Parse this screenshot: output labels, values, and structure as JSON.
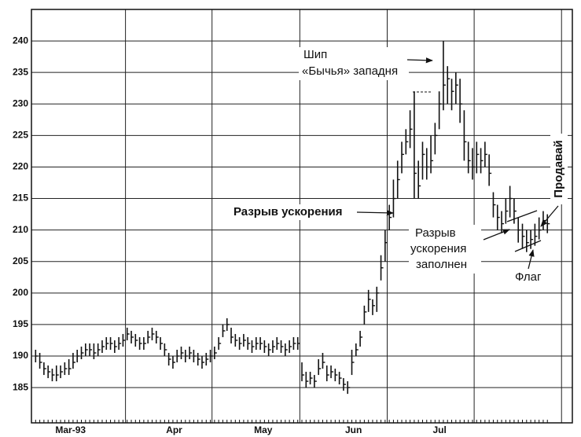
{
  "chart_data": {
    "type": "ohlc",
    "xlim": [
      0,
      130
    ],
    "xticks": [
      {
        "value": 9.4,
        "label": "Mar-93"
      },
      {
        "value": 34.3,
        "label": "Apr"
      },
      {
        "value": 55.7,
        "label": "May"
      },
      {
        "value": 77.4,
        "label": "Jun"
      },
      {
        "value": 98.1,
        "label": "Jul"
      }
    ],
    "xgrid": [
      22.6,
      43.4,
      64.5,
      85.5,
      106.4,
      127.4
    ],
    "ylim": [
      179.4,
      245
    ],
    "yticks": [
      185,
      190,
      195,
      200,
      205,
      210,
      215,
      220,
      225,
      230,
      235,
      240
    ],
    "grid": true,
    "color": "#111111",
    "annotations": {
      "spike": "Шип",
      "bull_trap": "«Бычья» западня",
      "gap": "Разрыв ускорения",
      "gap_filled": [
        "Разрыв",
        "ускорения",
        "заполнен"
      ],
      "flag": "Флаг",
      "sell": "Продавай"
    },
    "high": [
      191,
      190.5,
      189,
      188.5,
      188,
      188.5,
      188.5,
      189,
      189.5,
      190.5,
      191,
      191.5,
      192,
      192,
      192,
      192,
      192.5,
      193,
      193,
      192.5,
      193,
      193.5,
      194.5,
      194,
      193.5,
      193,
      193,
      194,
      194.5,
      194,
      193,
      192,
      190.5,
      190,
      191,
      191.5,
      191,
      191.5,
      191,
      190.5,
      190,
      190.5,
      191,
      191.5,
      193,
      195,
      196,
      194.5,
      193.5,
      193,
      193.5,
      193,
      192.5,
      193,
      193,
      192.5,
      192,
      192.5,
      193,
      192.5,
      192,
      192.5,
      193,
      193,
      189,
      187.5,
      187.5,
      187,
      189.5,
      190.5,
      188.5,
      188.5,
      188,
      187.5,
      186.5,
      186,
      191,
      192,
      194,
      198,
      200.5,
      199,
      201,
      206,
      210,
      214,
      218,
      221,
      224,
      226,
      229,
      232,
      221,
      224,
      223,
      225,
      227,
      232,
      240,
      236,
      234,
      235,
      234,
      229,
      224,
      223,
      224,
      223,
      224,
      222,
      216,
      214,
      213,
      215,
      217,
      215,
      212,
      211,
      210,
      210,
      211,
      212,
      213,
      212.5
    ],
    "low": [
      189,
      188,
      187,
      186.5,
      186,
      186,
      186.5,
      187,
      187,
      188,
      189,
      189.5,
      190,
      190,
      189.5,
      190,
      190.5,
      191,
      191,
      190.5,
      191,
      191.5,
      192.5,
      192,
      191.5,
      191,
      191,
      192,
      192.5,
      192,
      191,
      190,
      188.5,
      188,
      189,
      189.5,
      189,
      189.5,
      189,
      188.5,
      188,
      188.5,
      189,
      189.5,
      191,
      193,
      194,
      192,
      191.5,
      191,
      191.5,
      191,
      190.5,
      191,
      191,
      190.5,
      190,
      190.5,
      191,
      190.5,
      190,
      190.5,
      191,
      191,
      186,
      185,
      185.5,
      185,
      187,
      188,
      186,
      186.5,
      186,
      185.5,
      184.5,
      184,
      187,
      190,
      191.5,
      195,
      197,
      196.5,
      197,
      202,
      205,
      210,
      212,
      215,
      219,
      222,
      223,
      215,
      215,
      218,
      218,
      219,
      222,
      226,
      229,
      230,
      229,
      230,
      227,
      221,
      219,
      218,
      219,
      219,
      220,
      217,
      212,
      210,
      209.5,
      211,
      212,
      211,
      208,
      207,
      206.5,
      207,
      207.5,
      208.5,
      210,
      209.5
    ],
    "close": [
      190,
      189,
      188,
      187.5,
      187,
      187,
      187.5,
      188,
      188,
      189,
      190,
      190.5,
      191,
      191,
      190.5,
      191,
      191.5,
      192,
      192,
      191.5,
      192,
      192.5,
      193.5,
      193,
      192.5,
      192,
      192,
      193,
      193.5,
      193,
      192,
      191,
      189.5,
      189,
      190,
      190.5,
      190,
      190.5,
      190,
      189.5,
      189,
      189.5,
      190,
      190.5,
      192,
      194,
      195,
      193,
      192.5,
      192,
      192.5,
      192,
      191.5,
      192,
      192,
      191.5,
      191,
      191.5,
      192,
      191.5,
      191,
      191.5,
      192,
      192,
      187,
      186,
      186.5,
      186,
      188,
      189,
      187,
      187.5,
      187,
      186.5,
      185.5,
      185,
      189,
      191,
      193,
      197,
      199,
      198,
      200,
      204,
      208,
      212,
      215,
      218,
      222,
      224,
      226,
      219,
      217,
      222,
      220,
      221,
      225,
      230,
      233,
      234,
      232,
      233,
      230,
      224,
      221,
      220,
      222,
      221,
      222,
      219,
      214,
      212,
      211,
      213,
      215,
      213,
      210,
      209,
      208,
      208.5,
      209,
      210,
      211.5,
      211
    ]
  }
}
